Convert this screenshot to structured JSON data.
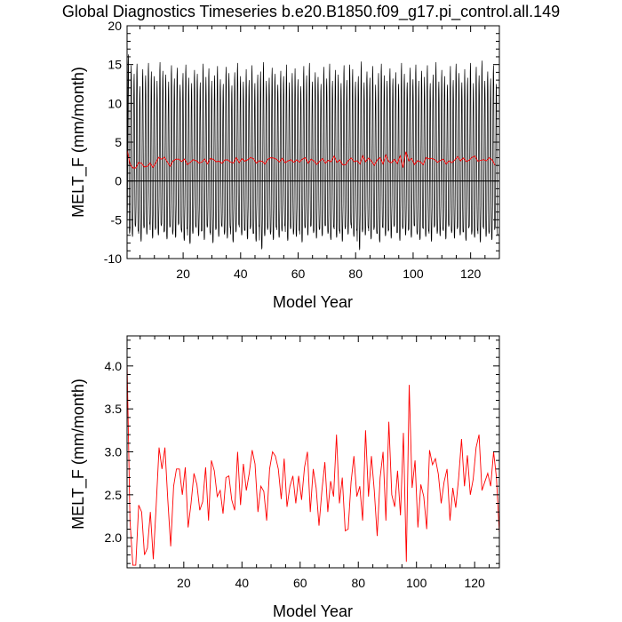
{
  "figure": {
    "title": "Global Diagnostics Timeseries b.e20.B1850.f09_g17.pi_control.all.149"
  },
  "chart_data": [
    {
      "type": "line",
      "title": "Global Diagnostics Timeseries b.e20.B1850.f09_g17.pi_control.all.149",
      "xlabel": "Model Year",
      "ylabel": "MELT_F (mm/month)",
      "xlim": [
        0.5,
        130
      ],
      "ylim": [
        -10,
        20
      ],
      "x_ticks": [
        20,
        40,
        60,
        80,
        100,
        120
      ],
      "y_ticks": [
        -10,
        -5,
        0,
        5,
        10,
        15,
        20
      ],
      "zero_line": true,
      "series": [
        {
          "style": "monthly",
          "color": "#000000",
          "month_offsets": [
            0.04,
            0.12,
            0.21,
            0.29,
            0.37,
            0.46,
            0.54,
            0.62,
            0.71,
            0.79,
            0.87,
            0.96
          ],
          "monthly_peak_max": [
            16.3,
            14.9,
            13.8,
            15.1,
            12.2,
            14.4,
            13.6,
            15.2,
            14.1,
            13.5,
            12.9,
            15.3,
            14.2,
            13.7,
            12.8,
            14.9,
            13.2,
            14.6,
            12.4,
            13.9,
            15.0,
            13.3,
            12.6,
            14.3,
            13.8,
            12.7,
            15.1,
            13.4,
            14.5,
            12.9,
            13.6,
            14.8,
            13.1,
            12.5,
            14.7,
            13.9,
            12.3,
            14.0,
            15.2,
            13.5,
            12.8,
            14.4,
            13.0,
            14.9,
            12.6,
            13.7,
            14.1,
            15.3,
            12.9,
            13.3,
            14.6,
            13.8,
            12.4,
            14.2,
            13.5,
            15.0,
            12.7,
            13.9,
            14.5,
            13.1,
            12.2,
            14.8,
            13.6,
            15.2,
            12.8,
            14.0,
            13.4,
            12.5,
            14.7,
            13.2,
            15.1,
            12.9,
            14.3,
            13.7,
            12.6,
            14.9,
            13.0,
            15.0,
            14.4,
            12.8,
            13.5,
            15.4,
            12.7,
            14.1,
            13.3,
            14.8,
            12.4,
            13.9,
            15.1,
            13.6,
            12.9,
            14.5,
            13.2,
            14.0,
            12.5,
            15.2,
            13.8,
            12.7,
            14.6,
            13.1,
            15.0,
            12.9,
            14.2,
            13.4,
            14.9,
            12.6,
            13.7,
            15.3,
            12.8,
            14.3,
            13.5,
            12.4,
            14.8,
            13.0,
            15.1,
            13.9,
            12.7,
            14.4,
            13.3,
            15.2,
            12.6,
            14.7,
            13.6,
            15.5,
            12.9,
            14.1,
            13.2,
            14.9,
            12.5
          ],
          "monthly_trough_min": [
            -6.8,
            -7.2,
            -5.9,
            -6.5,
            -7.8,
            -6.1,
            -6.9,
            -5.6,
            -7.4,
            -6.3,
            -7.0,
            -5.8,
            -6.6,
            -7.5,
            -6.0,
            -6.9,
            -7.3,
            -5.7,
            -6.4,
            -7.7,
            -6.2,
            -8.1,
            -6.8,
            -5.9,
            -7.1,
            -6.5,
            -7.6,
            -6.0,
            -6.7,
            -8.0,
            -6.3,
            -7.2,
            -5.8,
            -6.9,
            -7.4,
            -6.1,
            -7.9,
            -6.6,
            -5.7,
            -7.0,
            -6.4,
            -7.5,
            -6.2,
            -6.8,
            -7.8,
            -5.9,
            -8.8,
            -7.1,
            -6.3,
            -6.9,
            -7.6,
            -6.0,
            -7.3,
            -6.5,
            -5.8,
            -7.7,
            -6.2,
            -6.9,
            -7.2,
            -6.4,
            -7.9,
            -6.1,
            -7.0,
            -5.9,
            -6.7,
            -7.4,
            -6.3,
            -7.1,
            -5.8,
            -6.8,
            -7.6,
            -6.0,
            -7.3,
            -6.5,
            -7.8,
            -6.2,
            -6.9,
            -5.7,
            -7.2,
            -6.4,
            -8.9,
            -6.6,
            -7.0,
            -6.1,
            -7.5,
            -6.3,
            -6.8,
            -7.9,
            -6.0,
            -7.1,
            -6.5,
            -7.4,
            -5.9,
            -6.7,
            -7.7,
            -6.2,
            -7.0,
            -6.4,
            -7.3,
            -5.8,
            -6.9,
            -7.6,
            -6.1,
            -7.2,
            -6.5,
            -7.8,
            -6.0,
            -6.8,
            -7.1,
            -6.3,
            -7.5,
            -5.9,
            -6.7,
            -7.4,
            -6.2,
            -7.0,
            -6.6,
            -7.7,
            -6.1,
            -6.9,
            -7.3,
            -6.4,
            -7.9,
            -6.0,
            -7.2,
            -6.8,
            -7.6,
            -6.3,
            -7.0,
            -6.5
          ]
        },
        {
          "style": "annual_mean",
          "color": "#ff0000",
          "x": [
            0.5,
            1.5,
            2.5,
            3.5,
            4.5,
            5.5,
            6.5,
            7.5,
            8.5,
            9.5,
            10.5,
            11.5,
            12.5,
            13.5,
            14.5,
            15.5,
            16.5,
            17.5,
            18.5,
            19.5,
            20.5,
            21.5,
            22.5,
            23.5,
            24.5,
            25.5,
            26.5,
            27.5,
            28.5,
            29.5,
            30.5,
            31.5,
            32.5,
            33.5,
            34.5,
            35.5,
            36.5,
            37.5,
            38.5,
            39.5,
            40.5,
            41.5,
            42.5,
            43.5,
            44.5,
            45.5,
            46.5,
            47.5,
            48.5,
            49.5,
            50.5,
            51.5,
            52.5,
            53.5,
            54.5,
            55.5,
            56.5,
            57.5,
            58.5,
            59.5,
            60.5,
            61.5,
            62.5,
            63.5,
            64.5,
            65.5,
            66.5,
            67.5,
            68.5,
            69.5,
            70.5,
            71.5,
            72.5,
            73.5,
            74.5,
            75.5,
            76.5,
            77.5,
            78.5,
            79.5,
            80.5,
            81.5,
            82.5,
            83.5,
            84.5,
            85.5,
            86.5,
            87.5,
            88.5,
            89.5,
            90.5,
            91.5,
            92.5,
            93.5,
            94.5,
            95.5,
            96.5,
            97.5,
            98.5,
            99.5,
            100.5,
            101.5,
            102.5,
            103.5,
            104.5,
            105.5,
            106.5,
            107.5,
            108.5,
            109.5,
            110.5,
            111.5,
            112.5,
            113.5,
            114.5,
            115.5,
            116.5,
            117.5,
            118.5,
            119.5,
            120.5,
            121.5,
            122.5,
            123.5,
            124.5,
            125.5,
            126.5,
            127.5,
            128.5
          ],
          "values": [
            4.05,
            2.2,
            1.68,
            1.68,
            2.38,
            2.3,
            1.8,
            1.88,
            2.3,
            1.75,
            2.36,
            3.05,
            2.8,
            3.05,
            2.45,
            1.9,
            2.6,
            2.8,
            2.8,
            2.5,
            2.82,
            2.12,
            2.4,
            2.75,
            2.62,
            2.32,
            2.42,
            2.82,
            2.2,
            2.9,
            2.78,
            2.48,
            2.55,
            2.28,
            2.7,
            2.72,
            2.44,
            2.32,
            3.0,
            2.38,
            2.86,
            2.55,
            2.75,
            3.02,
            2.86,
            2.3,
            2.6,
            2.54,
            2.2,
            2.8,
            3.0,
            2.95,
            2.8,
            2.45,
            2.92,
            2.36,
            2.6,
            2.72,
            2.4,
            2.72,
            2.44,
            2.82,
            3.0,
            2.3,
            2.8,
            2.58,
            2.14,
            2.55,
            2.88,
            2.3,
            2.66,
            2.48,
            3.2,
            2.4,
            2.7,
            2.08,
            2.1,
            2.65,
            2.95,
            2.48,
            2.6,
            2.2,
            3.25,
            2.48,
            2.95,
            2.55,
            2.02,
            2.7,
            3.0,
            2.2,
            3.35,
            2.5,
            2.36,
            2.78,
            2.26,
            3.22,
            1.72,
            3.78,
            2.58,
            2.9,
            2.12,
            2.62,
            2.48,
            2.1,
            3.02,
            2.85,
            2.92,
            2.74,
            2.4,
            2.65,
            2.8,
            2.2,
            2.58,
            2.35,
            2.7,
            3.15,
            2.6,
            2.96,
            2.5,
            2.68,
            3.05,
            3.2,
            2.55,
            2.65,
            2.75,
            2.6,
            3.0,
            2.7,
            2.05
          ]
        }
      ]
    },
    {
      "type": "line",
      "xlabel": "Model Year",
      "ylabel": "MELT_F (mm/month)",
      "xlim": [
        0.5,
        128.5
      ],
      "ylim": [
        1.65,
        4.35
      ],
      "x_ticks": [
        20,
        40,
        60,
        80,
        100,
        120
      ],
      "y_ticks": [
        2.0,
        2.5,
        3.0,
        3.5,
        4.0
      ],
      "series": [
        {
          "style": "annual_mean",
          "color": "#ff0000",
          "x": [
            0.5,
            1.5,
            2.5,
            3.5,
            4.5,
            5.5,
            6.5,
            7.5,
            8.5,
            9.5,
            10.5,
            11.5,
            12.5,
            13.5,
            14.5,
            15.5,
            16.5,
            17.5,
            18.5,
            19.5,
            20.5,
            21.5,
            22.5,
            23.5,
            24.5,
            25.5,
            26.5,
            27.5,
            28.5,
            29.5,
            30.5,
            31.5,
            32.5,
            33.5,
            34.5,
            35.5,
            36.5,
            37.5,
            38.5,
            39.5,
            40.5,
            41.5,
            42.5,
            43.5,
            44.5,
            45.5,
            46.5,
            47.5,
            48.5,
            49.5,
            50.5,
            51.5,
            52.5,
            53.5,
            54.5,
            55.5,
            56.5,
            57.5,
            58.5,
            59.5,
            60.5,
            61.5,
            62.5,
            63.5,
            64.5,
            65.5,
            66.5,
            67.5,
            68.5,
            69.5,
            70.5,
            71.5,
            72.5,
            73.5,
            74.5,
            75.5,
            76.5,
            77.5,
            78.5,
            79.5,
            80.5,
            81.5,
            82.5,
            83.5,
            84.5,
            85.5,
            86.5,
            87.5,
            88.5,
            89.5,
            90.5,
            91.5,
            92.5,
            93.5,
            94.5,
            95.5,
            96.5,
            97.5,
            98.5,
            99.5,
            100.5,
            101.5,
            102.5,
            103.5,
            104.5,
            105.5,
            106.5,
            107.5,
            108.5,
            109.5,
            110.5,
            111.5,
            112.5,
            113.5,
            114.5,
            115.5,
            116.5,
            117.5,
            118.5,
            119.5,
            120.5,
            121.5,
            122.5,
            123.5,
            124.5,
            125.5,
            126.5,
            127.5,
            128.5
          ],
          "values": [
            4.05,
            2.2,
            1.68,
            1.68,
            2.38,
            2.3,
            1.8,
            1.88,
            2.3,
            1.75,
            2.36,
            3.05,
            2.8,
            3.05,
            2.45,
            1.9,
            2.6,
            2.8,
            2.8,
            2.5,
            2.82,
            2.12,
            2.4,
            2.75,
            2.62,
            2.32,
            2.42,
            2.82,
            2.2,
            2.9,
            2.78,
            2.48,
            2.55,
            2.28,
            2.7,
            2.72,
            2.44,
            2.32,
            3.0,
            2.38,
            2.86,
            2.55,
            2.75,
            3.02,
            2.86,
            2.3,
            2.6,
            2.54,
            2.2,
            2.8,
            3.0,
            2.95,
            2.8,
            2.45,
            2.92,
            2.36,
            2.6,
            2.72,
            2.4,
            2.72,
            2.44,
            2.82,
            3.0,
            2.3,
            2.8,
            2.58,
            2.14,
            2.55,
            2.88,
            2.3,
            2.66,
            2.48,
            3.2,
            2.4,
            2.7,
            2.08,
            2.1,
            2.65,
            2.95,
            2.48,
            2.6,
            2.2,
            3.25,
            2.48,
            2.95,
            2.55,
            2.02,
            2.7,
            3.0,
            2.2,
            3.35,
            2.5,
            2.36,
            2.78,
            2.26,
            3.22,
            1.72,
            3.78,
            2.58,
            2.9,
            2.12,
            2.62,
            2.48,
            2.1,
            3.02,
            2.85,
            2.92,
            2.74,
            2.4,
            2.65,
            2.8,
            2.2,
            2.58,
            2.35,
            2.7,
            3.15,
            2.6,
            2.96,
            2.5,
            2.68,
            3.05,
            3.2,
            2.55,
            2.65,
            2.75,
            2.6,
            3.0,
            2.7,
            2.05
          ]
        }
      ]
    }
  ]
}
